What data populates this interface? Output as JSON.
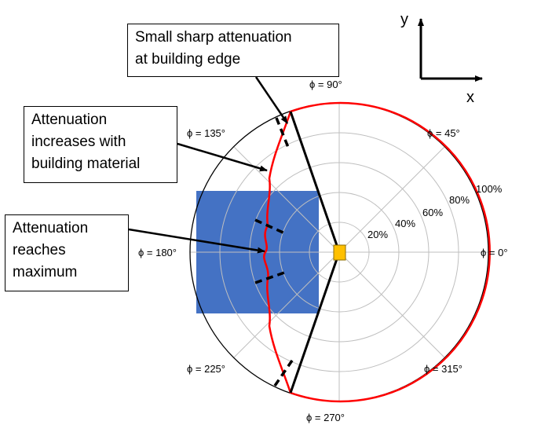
{
  "axes_indicator": {
    "y_label": "y",
    "x_label": "x"
  },
  "polar": {
    "angle_labels": [
      "ϕ = 0°",
      "ϕ = 45°",
      "ϕ = 90°",
      "ϕ = 135°",
      "ϕ = 180°",
      "ϕ = 225°",
      "ϕ = 270°",
      "ϕ = 315°"
    ],
    "radial_labels": [
      "20%",
      "40%",
      "60%",
      "80%",
      "100%"
    ]
  },
  "annotations": [
    {
      "lines": [
        "Small sharp attenuation",
        "at building edge"
      ]
    },
    {
      "lines": [
        "Attenuation",
        "increases with",
        "building material"
      ]
    },
    {
      "lines": [
        "Attenuation",
        "reaches",
        "maximum"
      ]
    }
  ],
  "colors": {
    "building": "#4472c4",
    "pattern": "#ff0000",
    "source": "#ffc000",
    "grid": "#bfbfbf",
    "rays": "#000000"
  }
}
